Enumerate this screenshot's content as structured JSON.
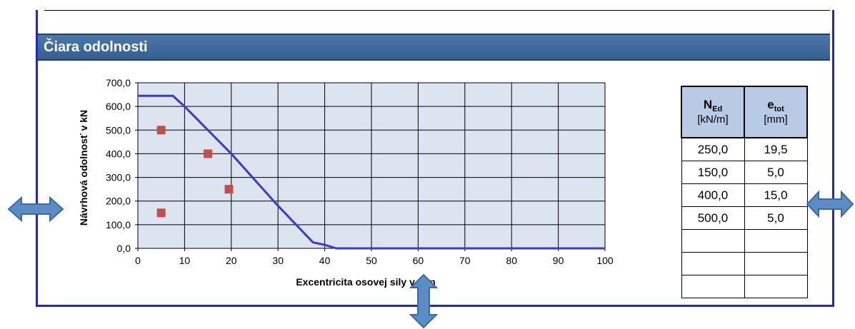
{
  "section_title": "Čiara odolnosti",
  "colors": {
    "header_bg": "#3e6a9c",
    "frame": "#2525c8",
    "plot_bg": "#dce4f0",
    "curve": "#3a3ad0",
    "points": "#c0504d",
    "table_header_bg": "#b9cae4",
    "arrow": "#5b8cc6"
  },
  "icons": [
    "double-arrow-horizontal",
    "double-arrow-horizontal",
    "double-arrow-vertical"
  ],
  "chart_data": {
    "type": "line",
    "xlabel": "Excentricita osovej sily v mm",
    "ylabel": "Návrhová odolnosť v kN",
    "xlim": [
      0,
      100
    ],
    "ylim": [
      0,
      700
    ],
    "x_ticks": [
      0,
      10,
      20,
      30,
      40,
      50,
      60,
      70,
      80,
      90,
      100
    ],
    "y_ticks": [
      0,
      100,
      200,
      300,
      400,
      500,
      600,
      700
    ],
    "x_tick_labels": [
      "0",
      "10",
      "20",
      "30",
      "40",
      "50",
      "60",
      "70",
      "80",
      "90",
      "100"
    ],
    "y_tick_labels": [
      "0,0",
      "100,0",
      "200,0",
      "300,0",
      "400,0",
      "500,0",
      "600,0",
      "700,0"
    ],
    "grid": true,
    "series": [
      {
        "type": "line",
        "x": [
          0,
          7.5,
          10,
          15,
          20,
          25,
          30,
          37.5,
          40,
          42.5,
          100
        ],
        "y": [
          645,
          645,
          600,
          500,
          400,
          290,
          180,
          25,
          15,
          0,
          0
        ]
      },
      {
        "type": "scatter",
        "x": [
          19.5,
          5.0,
          15.0,
          5.0
        ],
        "y": [
          250,
          150,
          400,
          500
        ]
      }
    ]
  },
  "table": {
    "headers": [
      {
        "main": "N",
        "sub": "Ed",
        "unit": "[kN/m]"
      },
      {
        "main": "e",
        "sub": "tot",
        "unit": "[mm]"
      }
    ],
    "rows": [
      [
        "250,0",
        "19,5"
      ],
      [
        "150,0",
        "5,0"
      ],
      [
        "400,0",
        "15,0"
      ],
      [
        "500,0",
        "5,0"
      ],
      [
        "",
        ""
      ],
      [
        "",
        ""
      ],
      [
        "",
        ""
      ]
    ]
  }
}
